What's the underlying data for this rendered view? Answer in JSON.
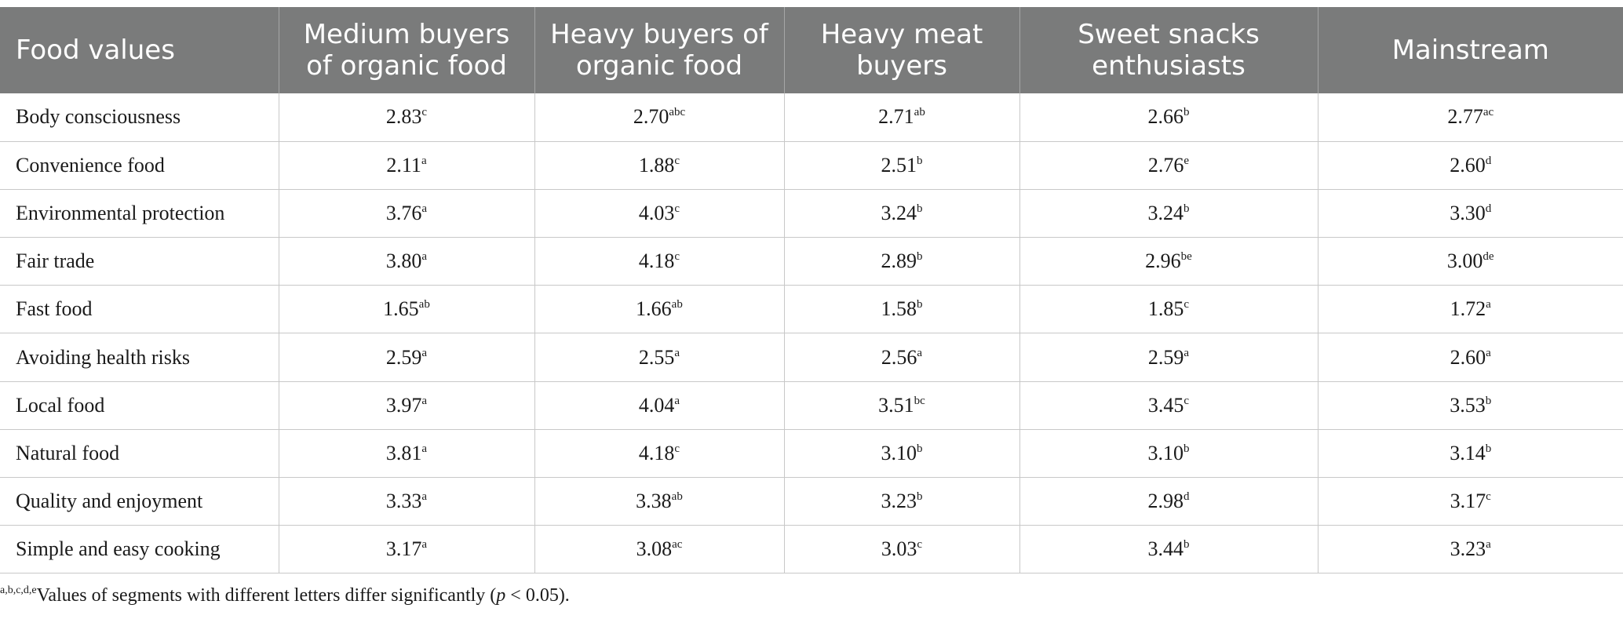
{
  "table": {
    "headers": [
      "Food values",
      "Medium buyers of organic food",
      "Heavy buyers of organic food",
      "Heavy meat buyers",
      "Sweet snacks enthusiasts",
      "Mainstream"
    ],
    "rows": [
      {
        "label": "Body consciousness",
        "cells": [
          {
            "v": "2.83",
            "s": "c"
          },
          {
            "v": "2.70",
            "s": "abc"
          },
          {
            "v": "2.71",
            "s": "ab"
          },
          {
            "v": "2.66",
            "s": "b"
          },
          {
            "v": "2.77",
            "s": "ac"
          }
        ]
      },
      {
        "label": "Convenience food",
        "cells": [
          {
            "v": "2.11",
            "s": "a"
          },
          {
            "v": "1.88",
            "s": "c"
          },
          {
            "v": "2.51",
            "s": "b"
          },
          {
            "v": "2.76",
            "s": "e"
          },
          {
            "v": "2.60",
            "s": "d"
          }
        ]
      },
      {
        "label": "Environmental protection",
        "cells": [
          {
            "v": "3.76",
            "s": "a"
          },
          {
            "v": "4.03",
            "s": "c"
          },
          {
            "v": "3.24",
            "s": "b"
          },
          {
            "v": "3.24",
            "s": "b"
          },
          {
            "v": "3.30",
            "s": "d"
          }
        ]
      },
      {
        "label": "Fair trade",
        "cells": [
          {
            "v": "3.80",
            "s": "a"
          },
          {
            "v": "4.18",
            "s": "c"
          },
          {
            "v": "2.89",
            "s": "b"
          },
          {
            "v": "2.96",
            "s": "be"
          },
          {
            "v": "3.00",
            "s": "de"
          }
        ]
      },
      {
        "label": "Fast food",
        "cells": [
          {
            "v": "1.65",
            "s": "ab"
          },
          {
            "v": "1.66",
            "s": "ab"
          },
          {
            "v": "1.58",
            "s": "b"
          },
          {
            "v": "1.85",
            "s": "c"
          },
          {
            "v": "1.72",
            "s": "a"
          }
        ]
      },
      {
        "label": "Avoiding health risks",
        "cells": [
          {
            "v": "2.59",
            "s": "a"
          },
          {
            "v": "2.55",
            "s": "a"
          },
          {
            "v": "2.56",
            "s": "a"
          },
          {
            "v": "2.59",
            "s": "a"
          },
          {
            "v": "2.60",
            "s": "a"
          }
        ]
      },
      {
        "label": "Local food",
        "cells": [
          {
            "v": "3.97",
            "s": "a"
          },
          {
            "v": "4.04",
            "s": "a"
          },
          {
            "v": "3.51",
            "s": "bc"
          },
          {
            "v": "3.45",
            "s": "c"
          },
          {
            "v": "3.53",
            "s": "b"
          }
        ]
      },
      {
        "label": "Natural food",
        "cells": [
          {
            "v": "3.81",
            "s": "a"
          },
          {
            "v": "4.18",
            "s": "c"
          },
          {
            "v": "3.10",
            "s": "b"
          },
          {
            "v": "3.10",
            "s": "b"
          },
          {
            "v": "3.14",
            "s": "b"
          }
        ]
      },
      {
        "label": "Quality and enjoyment",
        "cells": [
          {
            "v": "3.33",
            "s": "a"
          },
          {
            "v": "3.38",
            "s": "ab"
          },
          {
            "v": "3.23",
            "s": "b"
          },
          {
            "v": "2.98",
            "s": "d"
          },
          {
            "v": "3.17",
            "s": "c"
          }
        ]
      },
      {
        "label": "Simple and easy cooking",
        "cells": [
          {
            "v": "3.17",
            "s": "a"
          },
          {
            "v": "3.08",
            "s": "ac"
          },
          {
            "v": "3.03",
            "s": "c"
          },
          {
            "v": "3.44",
            "s": "b"
          },
          {
            "v": "3.23",
            "s": "a"
          }
        ]
      }
    ]
  },
  "footnote": {
    "superscript": "a,b,c,d,e",
    "text_before": "Values of segments with different letters differ significantly (",
    "p_symbol": "p",
    "text_after": " < 0.05)."
  }
}
